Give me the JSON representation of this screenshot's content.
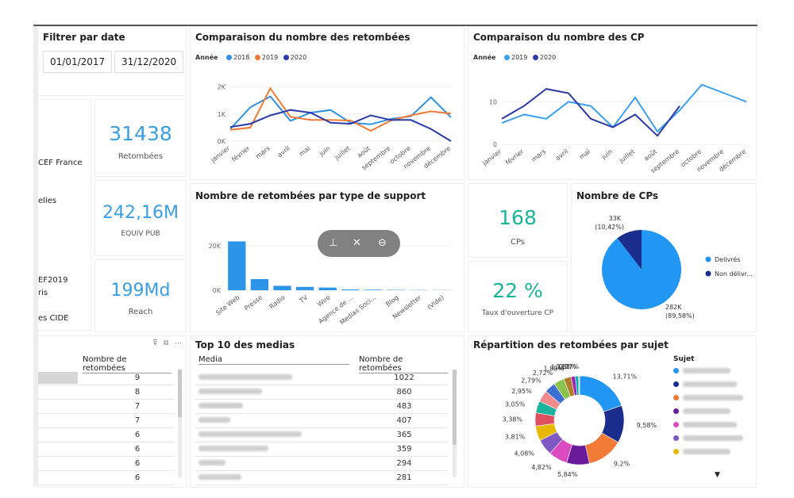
{
  "filter": {
    "title": "Filtrer par date",
    "start": "01/01/2017",
    "end": "31/12/2020"
  },
  "slicer_items": [
    "CEF France",
    "elles",
    "EF2019",
    "ris",
    "es CIDE"
  ],
  "kpis": {
    "retombees": {
      "value": "31438",
      "label": "Retombées",
      "color": "#3a9ee0"
    },
    "equiv": {
      "value": "242,16M",
      "label": "EQUIV PUB",
      "color": "#3a9ee0"
    },
    "reach": {
      "value": "199Md",
      "label": "Reach",
      "color": "#3a9ee0"
    },
    "cps": {
      "value": "168",
      "label": "CPs",
      "color": "#19b39b"
    },
    "taux": {
      "value": "22 %",
      "label": "Taux d'ouverture CP",
      "color": "#19b39b"
    }
  },
  "panels": {
    "retombees_chart": {
      "title": "Comparaison du nombre des retombées",
      "legend_title": "Année"
    },
    "cp_chart": {
      "title": "Comparaison du nombre des CP",
      "legend_title": "Année"
    },
    "support_chart": {
      "title": "Nombre de retombées par type de support"
    },
    "cps_pie": {
      "title": "Nombre de CPs"
    },
    "top_medias": {
      "title": "Top 10 des medias",
      "col_media": "Media",
      "col_count": "Nombre de retombées"
    },
    "sujet": {
      "title": "Répartition des retombées par sujet",
      "legend_title": "Sujet"
    },
    "left_table": {
      "col_count": "Nombre de retombées"
    }
  },
  "months": [
    "janvier",
    "février",
    "mars",
    "avril",
    "mai",
    "juin",
    "juillet",
    "août",
    "septembre",
    "octobre",
    "novembre",
    "décembre"
  ],
  "colors": {
    "y2017": "#2f8fe0",
    "y2018": "#2f8fe0",
    "y2019": "#f07a36",
    "y2020": "#2b3aa6",
    "cp2019": "#3aa0ef",
    "cp2020": "#2b3aa6",
    "bar": "#2d95e8"
  },
  "left_table_values": [
    "9",
    "8",
    "7",
    "7",
    "6",
    "6",
    "6",
    "6"
  ],
  "top_medias_values": [
    "1022",
    "860",
    "483",
    "407",
    "365",
    "359",
    "294",
    "281"
  ],
  "chart_data": [
    {
      "id": "retombees",
      "type": "line",
      "title": "Comparaison du nombre des retombées",
      "categories": [
        "janvier",
        "février",
        "mars",
        "avril",
        "mai",
        "juin",
        "juillet",
        "août",
        "septembre",
        "octobre",
        "novembre",
        "décembre"
      ],
      "y_ticks": [
        "0K",
        "1K",
        "2K"
      ],
      "ylim": [
        0,
        2400
      ],
      "legend_title": "Année",
      "series": [
        {
          "name": "2018",
          "color": "#2f8fe0",
          "values": [
            450,
            1250,
            1650,
            750,
            1050,
            1150,
            680,
            620,
            820,
            920,
            1620,
            880
          ]
        },
        {
          "name": "2019",
          "color": "#f07a36",
          "values": [
            420,
            500,
            1950,
            900,
            780,
            780,
            760,
            380,
            760,
            950,
            1100,
            1020
          ]
        },
        {
          "name": "2020",
          "color": "#2b3aa6",
          "values": [
            520,
            640,
            950,
            1150,
            1050,
            680,
            640,
            950,
            780,
            780,
            450,
            0
          ]
        }
      ]
    },
    {
      "id": "cp",
      "type": "line",
      "title": "Comparaison du nombre des CP",
      "categories": [
        "janvier",
        "février",
        "mars",
        "avril",
        "mai",
        "juin",
        "juillet",
        "août",
        "septembre",
        "octobre",
        "novembre",
        "décembre"
      ],
      "y_ticks": [
        "0",
        "10"
      ],
      "ylim": [
        0,
        16
      ],
      "legend_title": "Année",
      "series": [
        {
          "name": "2019",
          "color": "#3aa0ef",
          "values": [
            5,
            7,
            6,
            10,
            9,
            4,
            11,
            3,
            8,
            14,
            12,
            10
          ]
        },
        {
          "name": "2020",
          "color": "#2b3aa6",
          "values": [
            6,
            9,
            13,
            12,
            6,
            4,
            7,
            2,
            9,
            null,
            null,
            null
          ]
        }
      ]
    },
    {
      "id": "support",
      "type": "bar",
      "title": "Nombre de retombées par type de support",
      "categories": [
        "Site Web",
        "Presse",
        "Radio",
        "TV",
        "Wire",
        "Agence de ...",
        "Medias Soci...",
        "Blog",
        "Newsletter",
        "(Vide)"
      ],
      "values": [
        22000,
        5000,
        2000,
        1500,
        1200,
        400,
        250,
        150,
        100,
        50
      ],
      "y_ticks": [
        "0K",
        "20K"
      ],
      "ylim": [
        0,
        25000
      ]
    },
    {
      "id": "cps_pie",
      "type": "pie",
      "title": "Nombre de CPs",
      "labels": [
        "Delivrés",
        "Non délivr..."
      ],
      "values": [
        89.58,
        10.42
      ],
      "data_labels": [
        "282K (89,58%)",
        "33K (10,42%)"
      ],
      "colors": [
        "#2196f3",
        "#1a2c8c"
      ]
    },
    {
      "id": "sujet",
      "type": "pie",
      "title": "Répartition des retombées par sujet",
      "values": [
        13.71,
        9.58,
        9.2,
        5.84,
        4.82,
        4.08,
        3.81,
        3.38,
        3.05,
        2.95,
        2.79,
        2.72,
        1.88,
        1.11,
        0.82,
        0.27
      ],
      "labels": [
        "13,71%",
        "9,58%",
        "9,2%",
        "5,84%",
        "4,82%",
        "4,08%",
        "3,81%",
        "3,38%",
        "3,05%",
        "2,95%",
        "2,79%",
        "2,72%",
        "1,88%",
        "1,11%",
        "0,82%",
        "0,27%"
      ],
      "colors": [
        "#2196f3",
        "#1a2c8c",
        "#f07a36",
        "#6a1b9a",
        "#d94bbf",
        "#7e57c2",
        "#e6b800",
        "#e04f5f",
        "#1bb39b",
        "#f28c8c",
        "#3b6fd1",
        "#8bc34a",
        "#b07b2b",
        "#9c27b0",
        "#00acc1",
        "#cddc39"
      ]
    }
  ]
}
